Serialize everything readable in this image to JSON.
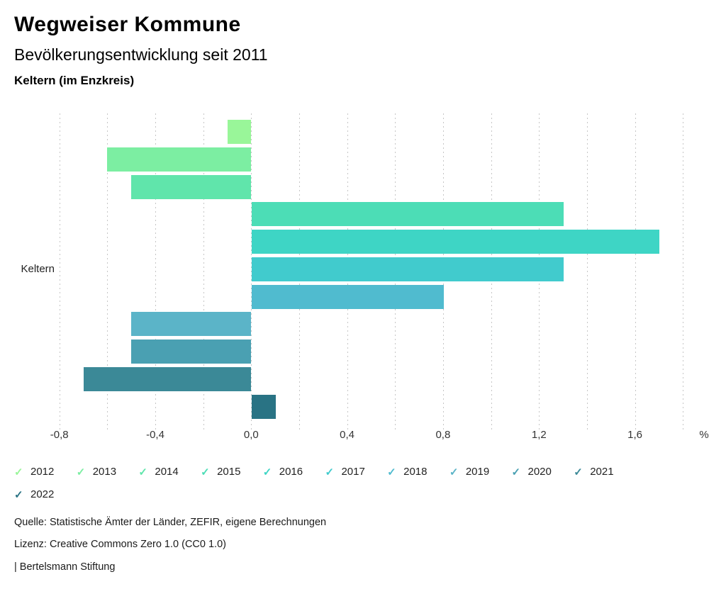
{
  "header": {
    "title": "Wegweiser Kommune",
    "subtitle": "Bevölkerungsentwicklung seit 2011",
    "region": "Keltern (im Enzkreis)"
  },
  "chart_data": {
    "type": "bar",
    "orientation": "horizontal",
    "title": "Bevölkerungsentwicklung seit 2011",
    "ylabel": "Keltern",
    "unit": "%",
    "categories": [
      "2012",
      "2013",
      "2014",
      "2015",
      "2016",
      "2017",
      "2018",
      "2019",
      "2020",
      "2021",
      "2022"
    ],
    "values": [
      -0.1,
      -0.6,
      -0.5,
      1.3,
      1.7,
      1.3,
      0.8,
      -0.5,
      -0.5,
      -0.7,
      0.1
    ],
    "colors": [
      "#99F699",
      "#7CEEA2",
      "#60E5AB",
      "#4CDDB6",
      "#3ED5C5",
      "#41CBCD",
      "#50BBCF",
      "#5BB4C8",
      "#4AA0B2",
      "#3B8997",
      "#297384"
    ],
    "axis": {
      "min": -0.9,
      "max": 1.9,
      "grid_values": [
        -0.8,
        -0.6,
        -0.4,
        -0.2,
        0.0,
        0.2,
        0.4,
        0.6,
        0.8,
        1.0,
        1.2,
        1.4,
        1.6,
        1.8
      ],
      "ticks": [
        {
          "value": -0.8,
          "label": "-0,8"
        },
        {
          "value": -0.4,
          "label": "-0,4"
        },
        {
          "value": 0.0,
          "label": "0,0"
        },
        {
          "value": 0.4,
          "label": "0,4"
        },
        {
          "value": 0.8,
          "label": "0,8"
        },
        {
          "value": 1.2,
          "label": "1,2"
        },
        {
          "value": 1.6,
          "label": "1,6"
        }
      ],
      "unit_label": "%",
      "grid_style": "dashed-vertical"
    },
    "legend_position": "bottom"
  },
  "legend": {
    "check_glyph": "✓",
    "items": [
      {
        "label": "2012",
        "color": "#99F699"
      },
      {
        "label": "2013",
        "color": "#7CEEA2"
      },
      {
        "label": "2014",
        "color": "#60E5AB"
      },
      {
        "label": "2015",
        "color": "#4CDDB6"
      },
      {
        "label": "2016",
        "color": "#3ED5C5"
      },
      {
        "label": "2017",
        "color": "#41CBCD"
      },
      {
        "label": "2018",
        "color": "#50BBCF"
      },
      {
        "label": "2019",
        "color": "#5BB4C8"
      },
      {
        "label": "2020",
        "color": "#4AA0B2"
      },
      {
        "label": "2021",
        "color": "#3B8997"
      },
      {
        "label": "2022",
        "color": "#297384"
      }
    ]
  },
  "footer": {
    "source": "Quelle: Statistische Ämter der Länder, ZEFIR, eigene Berechnungen",
    "license": "Lizenz: Creative Commons Zero 1.0 (CC0 1.0)",
    "attribution": "| Bertelsmann Stiftung"
  }
}
